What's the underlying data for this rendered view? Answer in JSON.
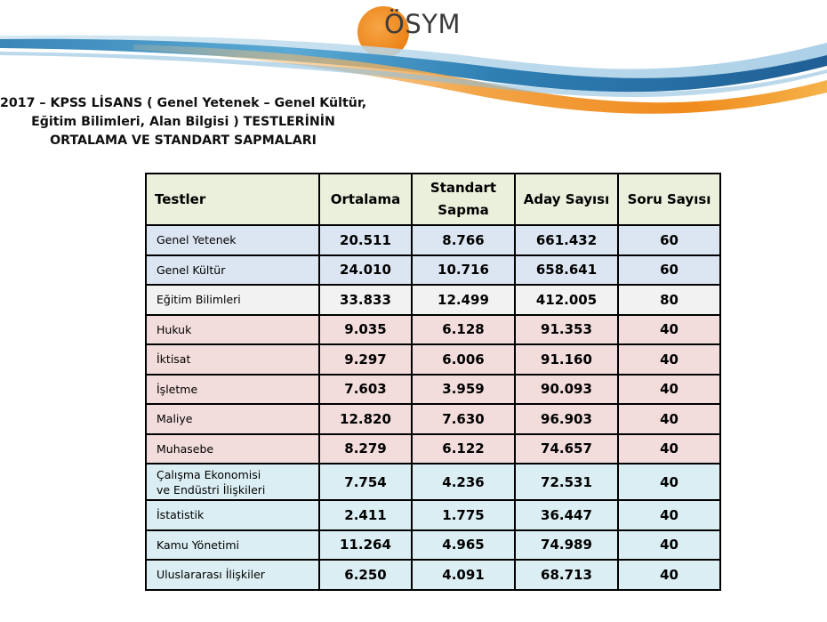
{
  "logo": {
    "text": "ÖSYM"
  },
  "title": {
    "line1": "2017 – KPSS LİSANS ( Genel Yetenek – Genel Kültür,",
    "line2": "Eğitim Bilimleri, Alan Bilgisi ) TESTLERİNİN",
    "line3": "ORTALAMA VE STANDART SAPMALARI"
  },
  "table": {
    "headers": {
      "tests": "Testler",
      "mean": "Ortalama",
      "std_line1": "Standart",
      "std_line2": "Sapma",
      "candidates": "Aday Sayısı",
      "questions": "Soru Sayısı"
    },
    "rows": [
      {
        "group": "blue",
        "name": "Genel Yetenek",
        "mean": "20.511",
        "std": "8.766",
        "candidates": "661.432",
        "questions": "60"
      },
      {
        "group": "blue",
        "name": "Genel Kültür",
        "mean": "24.010",
        "std": "10.716",
        "candidates": "658.641",
        "questions": "60"
      },
      {
        "group": "white",
        "name": "Eğitim Bilimleri",
        "mean": "33.833",
        "std": "12.499",
        "candidates": "412.005",
        "questions": "80"
      },
      {
        "group": "pink",
        "name": "Hukuk",
        "mean": "9.035",
        "std": "6.128",
        "candidates": "91.353",
        "questions": "40"
      },
      {
        "group": "pink",
        "name": "İktisat",
        "mean": "9.297",
        "std": "6.006",
        "candidates": "91.160",
        "questions": "40"
      },
      {
        "group": "pink",
        "name": "İşletme",
        "mean": "7.603",
        "std": "3.959",
        "candidates": "90.093",
        "questions": "40"
      },
      {
        "group": "pink",
        "name": "Maliye",
        "mean": "12.820",
        "std": "7.630",
        "candidates": "96.903",
        "questions": "40"
      },
      {
        "group": "pink",
        "name": "Muhasebe",
        "mean": "8.279",
        "std": "6.122",
        "candidates": "74.657",
        "questions": "40"
      },
      {
        "group": "cyan",
        "name_line1": "Çalışma Ekonomisi",
        "name_line2": "ve Endüstri İlişkileri",
        "mean": "7.754",
        "std": "4.236",
        "candidates": "72.531",
        "questions": "40"
      },
      {
        "group": "cyan",
        "name": "İstatistik",
        "mean": "2.411",
        "std": "1.775",
        "candidates": "36.447",
        "questions": "40"
      },
      {
        "group": "cyan",
        "name": "Kamu Yönetimi",
        "mean": "11.264",
        "std": "4.965",
        "candidates": "74.989",
        "questions": "40"
      },
      {
        "group": "cyan",
        "name": "Uluslararası İlişkiler",
        "mean": "6.250",
        "std": "4.091",
        "candidates": "68.713",
        "questions": "40"
      }
    ]
  },
  "colors": {
    "header_bg": "#ebf0dc",
    "blue_rows": "#dce6f2",
    "white_rows": "#f2f2f2",
    "pink_rows": "#f3dcdc",
    "cyan_rows": "#dbeef3",
    "logo_orange": "#f08a1c"
  }
}
